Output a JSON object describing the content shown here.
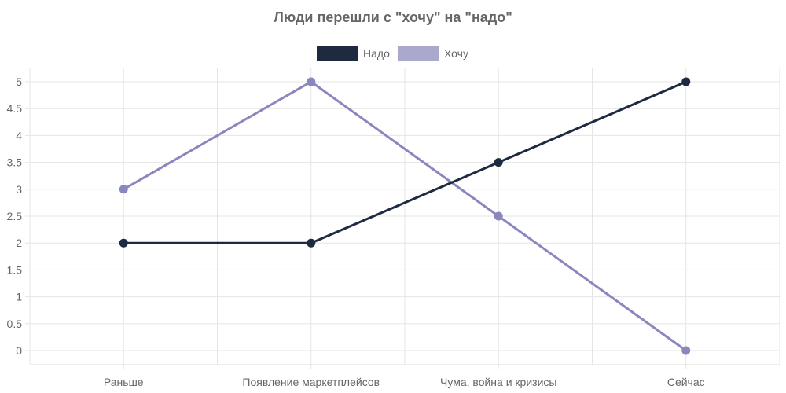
{
  "chart_data": {
    "type": "line",
    "title": "Люди перешли с \"хочу\" на \"надо\"",
    "categories": [
      "Раньше",
      "Появление маркетплейсов",
      "Чума, война и кризисы",
      "Сейчас"
    ],
    "series": [
      {
        "name": "Надо",
        "values": [
          2,
          2,
          3.5,
          5
        ],
        "color": "#1e2a40"
      },
      {
        "name": "Хочу",
        "values": [
          3,
          5,
          2.5,
          0
        ],
        "color": "#8a87bf",
        "legend_color": "#aaa8cc"
      }
    ],
    "ylim": [
      0,
      5
    ],
    "yticks": [
      "0",
      "0.5",
      "1",
      "1.5",
      "2",
      "2.5",
      "3",
      "3.5",
      "4",
      "4.5",
      "5"
    ],
    "grid": true,
    "legend_position": "top-center",
    "grid_color": "#e5e5e5"
  }
}
